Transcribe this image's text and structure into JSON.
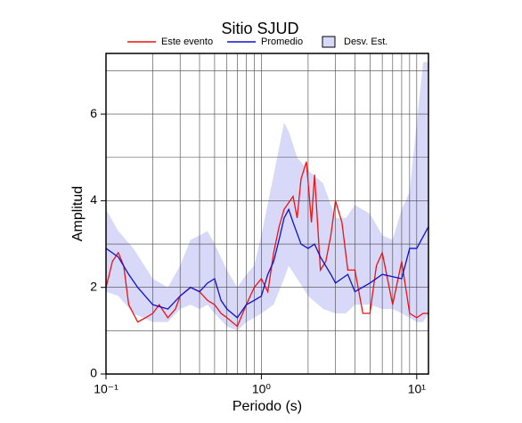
{
  "chart_data": {
    "type": "line",
    "title": "Sitio SJUD",
    "xlabel": "Periodo (s)",
    "ylabel": "Amplitud",
    "xlog": true,
    "xlim": [
      0.1,
      11.9
    ],
    "ylim": [
      0,
      7.4
    ],
    "xticks": [
      {
        "value": 0.1,
        "label": "10⁻¹"
      },
      {
        "value": 1,
        "label": "10⁰"
      },
      {
        "value": 10,
        "label": "10¹"
      }
    ],
    "yticks": [
      0,
      2,
      4,
      6
    ],
    "xgrid": [
      0.2,
      0.3,
      0.4,
      0.5,
      0.6,
      0.7,
      0.8,
      0.9,
      2,
      3,
      4,
      5,
      6,
      7,
      8,
      9
    ],
    "ygrid": [
      1,
      3,
      5,
      7
    ],
    "grid": true,
    "legend": "top",
    "band": {
      "name": "Desv. Est.",
      "color": "#d8d8f8",
      "x": [
        0.1,
        0.12,
        0.15,
        0.2,
        0.25,
        0.3,
        0.35,
        0.4,
        0.45,
        0.5,
        0.6,
        0.7,
        0.8,
        0.9,
        1.0,
        1.2,
        1.4,
        1.5,
        1.7,
        2.0,
        2.5,
        3.0,
        3.5,
        4.0,
        5.0,
        6.0,
        7.0,
        8.0,
        9.0,
        10,
        11,
        11.9
      ],
      "lower": [
        1.9,
        1.8,
        1.4,
        1.2,
        1.2,
        1.5,
        1.6,
        1.5,
        1.6,
        1.4,
        1.1,
        1.0,
        1.2,
        1.3,
        1.4,
        1.6,
        2.2,
        2.5,
        2.2,
        1.8,
        1.5,
        1.4,
        1.4,
        1.6,
        1.6,
        1.5,
        1.5,
        1.4,
        1.3,
        1.2,
        1.2,
        1.4
      ],
      "upper": [
        3.8,
        3.3,
        2.9,
        2.2,
        2.0,
        2.5,
        3.1,
        3.2,
        3.3,
        3.0,
        2.4,
        2.0,
        2.3,
        2.5,
        3.2,
        4.6,
        5.8,
        5.6,
        5.0,
        4.7,
        4.4,
        3.6,
        3.6,
        3.9,
        3.7,
        3.2,
        3.1,
        3.8,
        4.2,
        5.8,
        7.2,
        7.2
      ]
    },
    "series": [
      {
        "name": "Este evento",
        "color": "#ee1111",
        "x": [
          0.1,
          0.105,
          0.11,
          0.12,
          0.13,
          0.14,
          0.16,
          0.18,
          0.2,
          0.22,
          0.25,
          0.28,
          0.3,
          0.35,
          0.4,
          0.45,
          0.5,
          0.55,
          0.6,
          0.7,
          0.8,
          0.9,
          1.0,
          1.1,
          1.2,
          1.3,
          1.4,
          1.6,
          1.7,
          1.8,
          1.95,
          2.1,
          2.2,
          2.4,
          2.6,
          2.8,
          3.0,
          3.3,
          3.6,
          4.0,
          4.5,
          5.0,
          5.5,
          6.0,
          7.0,
          8.0,
          9.0,
          10,
          11,
          11.9
        ],
        "values": [
          2.0,
          2.3,
          2.6,
          2.8,
          2.5,
          1.6,
          1.2,
          1.3,
          1.4,
          1.6,
          1.3,
          1.5,
          1.8,
          2.0,
          1.9,
          1.7,
          1.6,
          1.4,
          1.3,
          1.1,
          1.6,
          2.0,
          2.2,
          1.9,
          2.8,
          3.4,
          3.8,
          4.1,
          3.6,
          4.5,
          4.9,
          3.5,
          4.6,
          2.4,
          2.6,
          3.2,
          4.0,
          3.5,
          2.4,
          2.4,
          1.4,
          1.4,
          2.5,
          2.8,
          1.6,
          2.6,
          1.4,
          1.3,
          1.4,
          1.4
        ]
      },
      {
        "name": "Promedio",
        "color": "#1111cc",
        "x": [
          0.1,
          0.12,
          0.14,
          0.16,
          0.2,
          0.25,
          0.3,
          0.35,
          0.4,
          0.45,
          0.5,
          0.55,
          0.6,
          0.7,
          0.8,
          0.9,
          1.0,
          1.1,
          1.2,
          1.3,
          1.4,
          1.5,
          1.6,
          1.8,
          2.0,
          2.2,
          2.4,
          2.8,
          3.0,
          3.6,
          4.0,
          5.0,
          6.0,
          8.0,
          9.0,
          10,
          11.9
        ],
        "values": [
          2.9,
          2.7,
          2.3,
          2.0,
          1.6,
          1.5,
          1.8,
          2.0,
          1.9,
          2.1,
          2.2,
          1.7,
          1.5,
          1.3,
          1.6,
          1.7,
          1.8,
          2.3,
          2.6,
          3.1,
          3.6,
          3.8,
          3.5,
          3.0,
          2.9,
          3.0,
          2.7,
          2.3,
          2.1,
          2.3,
          1.9,
          2.1,
          2.3,
          2.2,
          2.9,
          2.9,
          3.4
        ]
      }
    ]
  }
}
